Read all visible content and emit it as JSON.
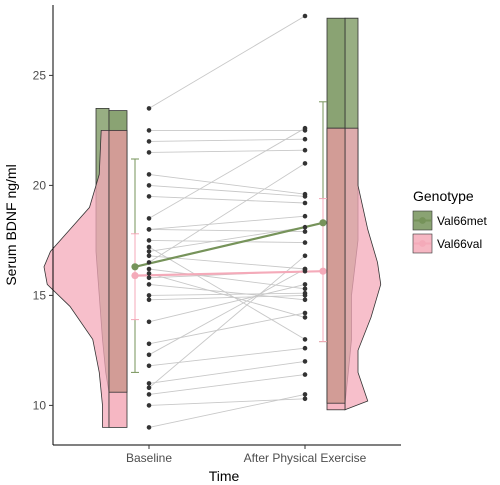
{
  "chart_data": {
    "type": "raincloud",
    "title": "",
    "xlabel": "Time",
    "ylabel": "Serum BDNF ng/ml",
    "categories": [
      "Baseline",
      "After Physical Exercise"
    ],
    "ylim": [
      8.2,
      28.2
    ],
    "yticks": [
      10,
      15,
      20,
      25
    ],
    "legend": {
      "title": "Genotype",
      "position": "right",
      "entries": [
        "Val66met",
        "Val66val"
      ]
    },
    "colors": {
      "Val66met": "#76935a",
      "Val66val": "#f4aab9",
      "paired_lines": "#c8c8c8",
      "points": "#333333",
      "box_fill": "#d29c96"
    },
    "series": [
      {
        "name": "Val66met",
        "means": [
          16.3,
          18.3
        ],
        "error_bars": [
          [
            11.5,
            21.2
          ],
          [
            12.9,
            23.8
          ]
        ],
        "range": [
          [
            10.6,
            23.4
          ],
          [
            10.1,
            27.6
          ]
        ]
      },
      {
        "name": "Val66val",
        "means": [
          15.9,
          16.1
        ],
        "error_bars": [
          [
            13.9,
            17.8
          ],
          [
            12.9,
            19.4
          ]
        ],
        "range": [
          [
            9.0,
            22.5
          ],
          [
            9.8,
            22.6
          ]
        ]
      }
    ],
    "paired_points": [
      [
        23.5,
        27.7
      ],
      [
        22.5,
        22.5
      ],
      [
        22.0,
        22.1
      ],
      [
        21.5,
        21.6
      ],
      [
        20.5,
        19.6
      ],
      [
        20.0,
        19.5
      ],
      [
        19.5,
        19.2
      ],
      [
        18.5,
        22.6
      ],
      [
        18.0,
        17.9
      ],
      [
        18.0,
        18.6
      ],
      [
        17.5,
        17.4
      ],
      [
        17.2,
        13.0
      ],
      [
        17.0,
        18.1
      ],
      [
        16.8,
        16.2
      ],
      [
        16.5,
        21.0
      ],
      [
        16.2,
        15.3
      ],
      [
        16.0,
        14.0
      ],
      [
        15.8,
        16.1
      ],
      [
        15.5,
        14.8
      ],
      [
        15.0,
        15.1
      ],
      [
        14.8,
        15.0
      ],
      [
        13.8,
        15.5
      ],
      [
        12.8,
        14.2
      ],
      [
        12.3,
        16.2
      ],
      [
        11.8,
        12.6
      ],
      [
        11.0,
        12.0
      ],
      [
        10.8,
        16.8
      ],
      [
        10.5,
        11.4
      ],
      [
        10.0,
        10.3
      ],
      [
        9.0,
        10.5
      ]
    ],
    "distributions": [
      {
        "category": "Baseline",
        "series": "Val66met",
        "side": "left",
        "density": [
          [
            10.6,
            0.0
          ],
          [
            11.5,
            0.05
          ],
          [
            13.0,
            0.1
          ],
          [
            15.0,
            0.15
          ],
          [
            17.0,
            0.2
          ],
          [
            18.5,
            0.2
          ],
          [
            20.0,
            0.2
          ],
          [
            21.5,
            0.2
          ],
          [
            22.5,
            0.2
          ],
          [
            23.5,
            0.2
          ]
        ]
      },
      {
        "category": "Baseline",
        "series": "Val66val",
        "side": "left",
        "density": [
          [
            9.0,
            0.1
          ],
          [
            10.0,
            0.1
          ],
          [
            11.5,
            0.15
          ],
          [
            13.0,
            0.25
          ],
          [
            14.5,
            0.6
          ],
          [
            15.5,
            0.95
          ],
          [
            16.3,
            1.0
          ],
          [
            17.0,
            0.9
          ],
          [
            18.0,
            0.6
          ],
          [
            19.0,
            0.3
          ],
          [
            20.5,
            0.15
          ],
          [
            22.5,
            0.12
          ]
        ]
      },
      {
        "category": "After Physical Exercise",
        "series": "Val66met",
        "side": "right",
        "density": [
          [
            10.1,
            0.0
          ],
          [
            11.5,
            0.05
          ],
          [
            13.0,
            0.1
          ],
          [
            15.0,
            0.1
          ],
          [
            17.5,
            0.2
          ],
          [
            20.0,
            0.2
          ],
          [
            22.6,
            0.2
          ],
          [
            23.5,
            0.2
          ],
          [
            27.6,
            0.2
          ]
        ]
      },
      {
        "category": "After Physical Exercise",
        "series": "Val66val",
        "side": "right",
        "density": [
          [
            9.8,
            0.0
          ],
          [
            10.2,
            0.35
          ],
          [
            11.5,
            0.2
          ],
          [
            12.5,
            0.2
          ],
          [
            14.0,
            0.4
          ],
          [
            15.5,
            0.55
          ],
          [
            16.5,
            0.5
          ],
          [
            18.0,
            0.35
          ],
          [
            20.0,
            0.2
          ],
          [
            22.6,
            0.2
          ]
        ]
      }
    ]
  }
}
